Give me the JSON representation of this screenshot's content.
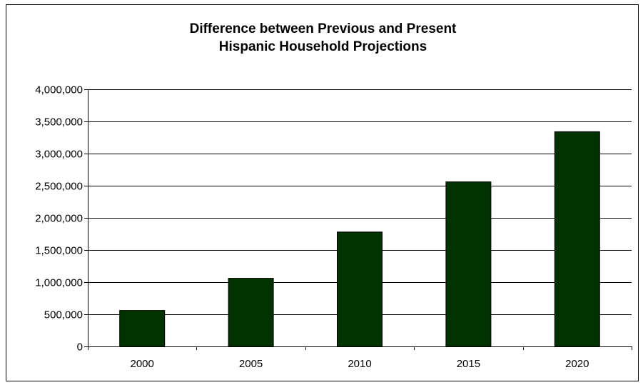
{
  "chart_data": {
    "type": "bar",
    "title_lines": [
      "Difference between Previous and Present",
      "Hispanic Household Projections"
    ],
    "categories": [
      "2000",
      "2005",
      "2010",
      "2015",
      "2020"
    ],
    "values": [
      560000,
      1060000,
      1780000,
      2560000,
      3340000
    ],
    "xlabel": "",
    "ylabel": "",
    "ylim": [
      0,
      4000000
    ],
    "y_ticks": [
      0,
      500000,
      1000000,
      1500000,
      2000000,
      2500000,
      3000000,
      3500000,
      4000000
    ],
    "y_tick_labels": [
      "0",
      "500,000",
      "1,000,000",
      "1,500,000",
      "2,000,000",
      "2,500,000",
      "3,000,000",
      "3,500,000",
      "4,000,000"
    ],
    "grid": true,
    "legend": "none",
    "colors": {
      "bar_fill": "#003300",
      "bar_stroke": "#000000",
      "gridline": "#000000",
      "background": "#ffffff"
    }
  }
}
